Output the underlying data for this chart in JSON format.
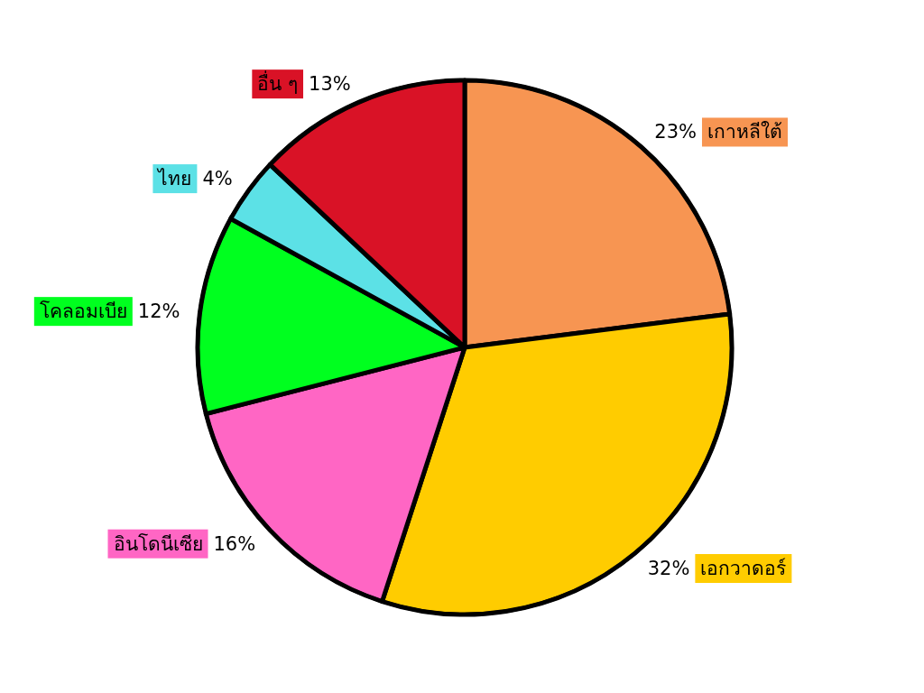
{
  "chart_data": {
    "type": "pie",
    "categories": [
      "เกาหลีใต้",
      "เอกวาดอร์",
      "อินโดนีเซีย",
      "โคลอมเบีย",
      "ไทย",
      "อื่น ๆ"
    ],
    "values": [
      23,
      32,
      16,
      12,
      4,
      13
    ],
    "value_labels": [
      "23%",
      "32%",
      "16%",
      "12%",
      "4%",
      "13%"
    ],
    "colors": [
      "#f79552",
      "#ffcc00",
      "#ff66c4",
      "#00ff1f",
      "#5ce1e6",
      "#d91226"
    ]
  }
}
